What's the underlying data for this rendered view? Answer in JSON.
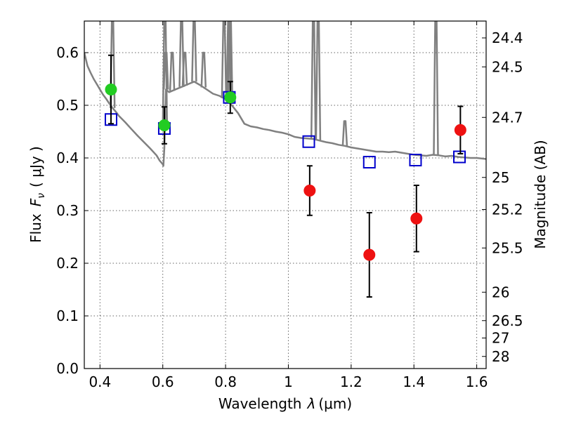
{
  "chart_data": {
    "type": "scatter",
    "xlabel_prefix": "Wavelength",
    "xlabel_symbol": "λ",
    "xlabel_unit": "(μm)",
    "ylabel_prefix": "Flux",
    "ylabel_symbol": "F",
    "ylabel_subscript": "ν",
    "ylabel_unit": "( μJy )",
    "y2label": "Magnitude (AB)",
    "xlim": [
      0.35,
      1.63
    ],
    "ylim": [
      0.0,
      0.66
    ],
    "grid": true,
    "x_ticks": [
      {
        "value": 0.4,
        "label": "0.4"
      },
      {
        "value": 0.6,
        "label": "0.6"
      },
      {
        "value": 0.8,
        "label": "0.8"
      },
      {
        "value": 1.0,
        "label": "1"
      },
      {
        "value": 1.2,
        "label": "1.2"
      },
      {
        "value": 1.4,
        "label": "1.4"
      },
      {
        "value": 1.6,
        "label": "1.6"
      }
    ],
    "y_ticks": [
      {
        "value": 0.0,
        "label": "0.0"
      },
      {
        "value": 0.1,
        "label": "0.1"
      },
      {
        "value": 0.2,
        "label": "0.2"
      },
      {
        "value": 0.3,
        "label": "0.3"
      },
      {
        "value": 0.4,
        "label": "0.4"
      },
      {
        "value": 0.5,
        "label": "0.5"
      },
      {
        "value": 0.6,
        "label": "0.6"
      }
    ],
    "y2_ticks": [
      {
        "flux": 0.628,
        "label": "24.4"
      },
      {
        "flux": 0.573,
        "label": "24.5"
      },
      {
        "flux": 0.477,
        "label": "24.7"
      },
      {
        "flux": 0.363,
        "label": "25"
      },
      {
        "flux": 0.302,
        "label": "25.2"
      },
      {
        "flux": 0.229,
        "label": "25.5"
      },
      {
        "flux": 0.145,
        "label": "26"
      },
      {
        "flux": 0.091,
        "label": "26.5"
      },
      {
        "flux": 0.058,
        "label": "27"
      },
      {
        "flux": 0.023,
        "label": "28"
      }
    ],
    "series": [
      {
        "kind": "sed_model_line",
        "color": "#808080",
        "x": [
          0.35,
          0.36,
          0.37,
          0.38,
          0.39,
          0.4,
          0.41,
          0.42,
          0.43,
          0.44,
          0.45,
          0.46,
          0.48,
          0.5,
          0.52,
          0.54,
          0.56,
          0.58,
          0.59,
          0.6,
          0.602,
          0.605,
          0.61,
          0.62,
          0.64,
          0.66,
          0.68,
          0.7,
          0.72,
          0.74,
          0.76,
          0.78,
          0.8,
          0.82,
          0.84,
          0.86,
          0.88,
          0.9,
          0.92,
          0.94,
          0.96,
          0.98,
          1.0,
          1.02,
          1.04,
          1.06,
          1.08,
          1.1,
          1.12,
          1.14,
          1.16,
          1.18,
          1.2,
          1.22,
          1.24,
          1.26,
          1.28,
          1.3,
          1.32,
          1.34,
          1.36,
          1.38,
          1.4,
          1.42,
          1.44,
          1.46,
          1.48,
          1.5,
          1.52,
          1.54,
          1.56,
          1.58,
          1.6,
          1.63
        ],
        "y": [
          0.6,
          0.575,
          0.562,
          0.55,
          0.54,
          0.53,
          0.52,
          0.512,
          0.503,
          0.495,
          0.488,
          0.48,
          0.468,
          0.455,
          0.442,
          0.43,
          0.418,
          0.405,
          0.395,
          0.388,
          0.385,
          0.42,
          0.53,
          0.525,
          0.53,
          0.535,
          0.54,
          0.545,
          0.538,
          0.53,
          0.522,
          0.518,
          0.512,
          0.5,
          0.485,
          0.465,
          0.46,
          0.458,
          0.455,
          0.453,
          0.45,
          0.448,
          0.445,
          0.44,
          0.438,
          0.437,
          0.436,
          0.433,
          0.43,
          0.428,
          0.425,
          0.423,
          0.42,
          0.418,
          0.416,
          0.414,
          0.412,
          0.412,
          0.411,
          0.412,
          0.41,
          0.408,
          0.406,
          0.405,
          0.404,
          0.406,
          0.405,
          0.403,
          0.404,
          0.402,
          0.401,
          0.4,
          0.4,
          0.398
        ]
      },
      {
        "kind": "sed_emission_lines",
        "color": "#808080",
        "lines": [
          {
            "x": 0.44,
            "peak": 0.66
          },
          {
            "x": 0.607,
            "peak": 0.66
          },
          {
            "x": 0.61,
            "peak": 0.6
          },
          {
            "x": 0.63,
            "peak": 0.6
          },
          {
            "x": 0.66,
            "peak": 0.66
          },
          {
            "x": 0.67,
            "peak": 0.6
          },
          {
            "x": 0.7,
            "peak": 0.66
          },
          {
            "x": 0.73,
            "peak": 0.6
          },
          {
            "x": 0.795,
            "peak": 0.66
          },
          {
            "x": 0.81,
            "peak": 0.66
          },
          {
            "x": 0.815,
            "peak": 0.66
          },
          {
            "x": 1.08,
            "peak": 0.66
          },
          {
            "x": 1.095,
            "peak": 0.66
          },
          {
            "x": 1.18,
            "peak": 0.47
          },
          {
            "x": 1.47,
            "peak": 0.66
          }
        ]
      },
      {
        "kind": "model_photometry",
        "marker": "open-square",
        "color": "#0000cc",
        "x": [
          0.435,
          0.605,
          0.812,
          1.065,
          1.258,
          1.405,
          1.545
        ],
        "y": [
          0.473,
          0.456,
          0.515,
          0.431,
          0.392,
          0.396,
          0.402
        ]
      },
      {
        "kind": "detections_optical",
        "marker": "filled-circle",
        "color": "#22cc22",
        "x": [
          0.435,
          0.605,
          0.815
        ],
        "y": [
          0.53,
          0.462,
          0.515
        ],
        "yerr_low": [
          0.065,
          0.035,
          0.03
        ],
        "yerr_high": [
          0.065,
          0.035,
          0.03
        ]
      },
      {
        "kind": "detections_nir",
        "marker": "filled-circle",
        "color": "#ee1111",
        "x": [
          1.068,
          1.258,
          1.408,
          1.548
        ],
        "y": [
          0.338,
          0.216,
          0.285,
          0.453
        ],
        "yerr_low": [
          0.047,
          0.08,
          0.063,
          0.045
        ],
        "yerr_high": [
          0.047,
          0.08,
          0.063,
          0.045
        ]
      }
    ]
  }
}
